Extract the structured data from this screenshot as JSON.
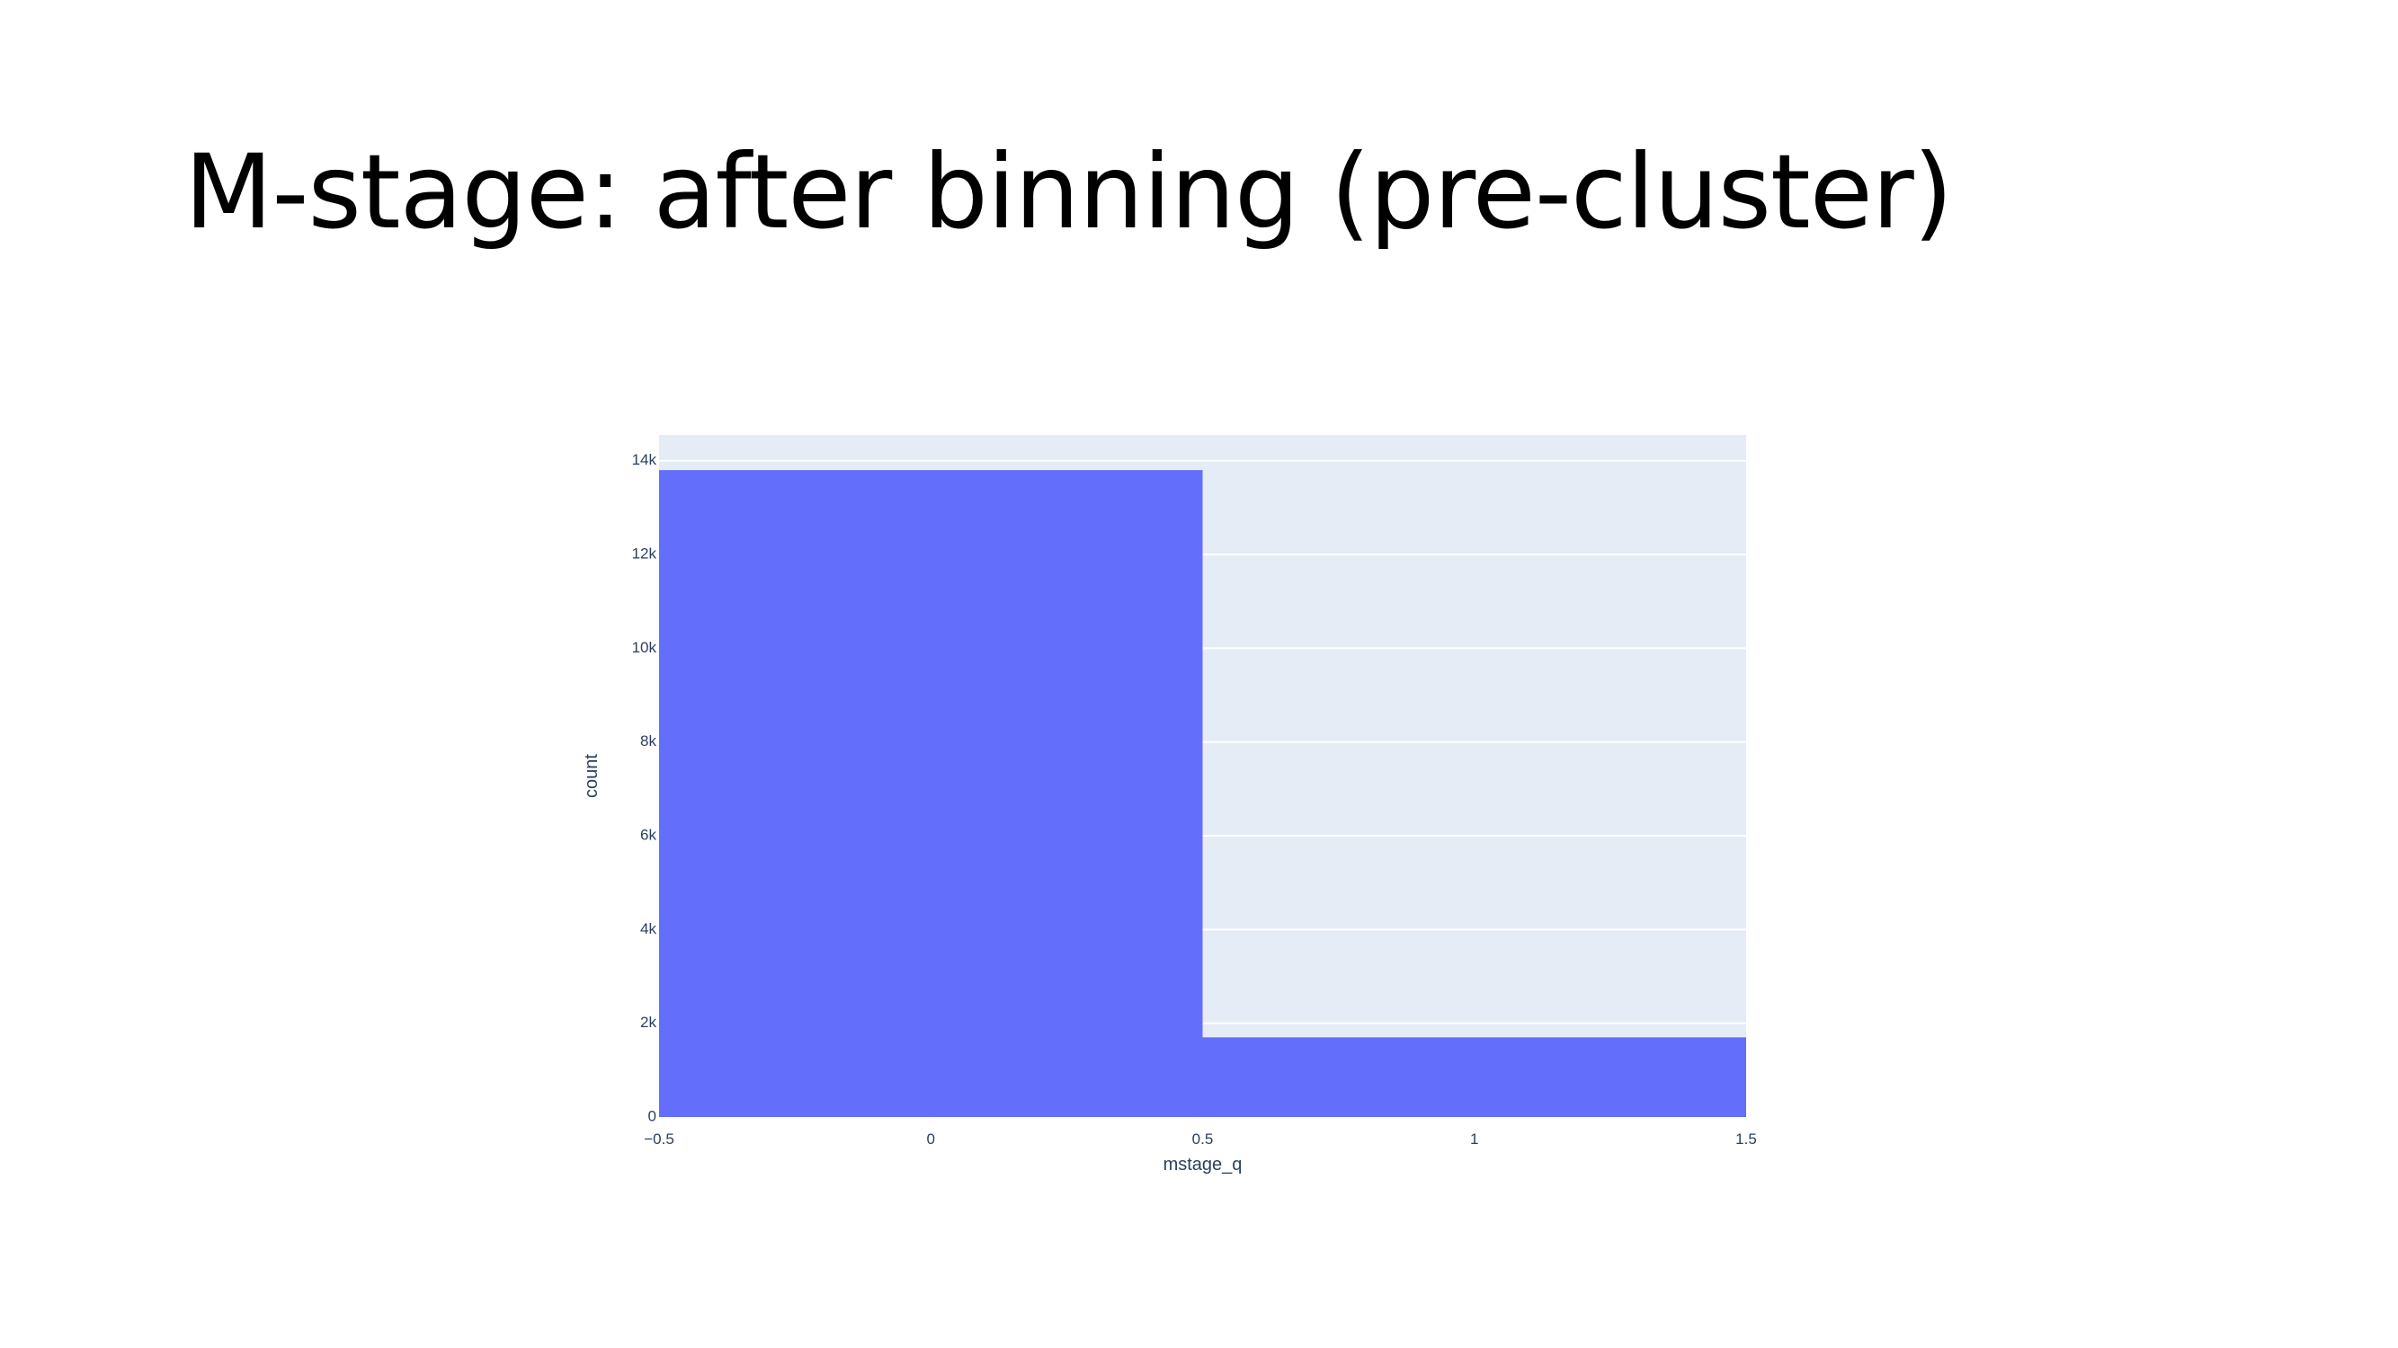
{
  "slide": {
    "title": "M-stage: after binning (pre-cluster)"
  },
  "chart_data": {
    "type": "bar",
    "subtype": "histogram",
    "bins": [
      {
        "x0": -0.5,
        "x1": 0.5,
        "count": 13800
      },
      {
        "x0": 0.5,
        "x1": 1.5,
        "count": 1700
      }
    ],
    "xlabel": "mstage_q",
    "ylabel": "count",
    "xlim": [
      -0.5,
      1.5
    ],
    "ylim": [
      0,
      14550
    ],
    "xticks": [
      {
        "value": -0.5,
        "label": "−0.5"
      },
      {
        "value": 0,
        "label": "0"
      },
      {
        "value": 0.5,
        "label": "0.5"
      },
      {
        "value": 1,
        "label": "1"
      },
      {
        "value": 1.5,
        "label": "1.5"
      }
    ],
    "yticks": [
      {
        "value": 0,
        "label": "0"
      },
      {
        "value": 2000,
        "label": "2k"
      },
      {
        "value": 4000,
        "label": "4k"
      },
      {
        "value": 6000,
        "label": "6k"
      },
      {
        "value": 8000,
        "label": "8k"
      },
      {
        "value": 10000,
        "label": "10k"
      },
      {
        "value": 12000,
        "label": "12k"
      },
      {
        "value": 14000,
        "label": "14k"
      }
    ],
    "grid": true,
    "colors": {
      "bar": "#636efa",
      "plot_background": "#e5ecf6",
      "grid": "#ffffff",
      "text": "#2a3f5f"
    }
  }
}
